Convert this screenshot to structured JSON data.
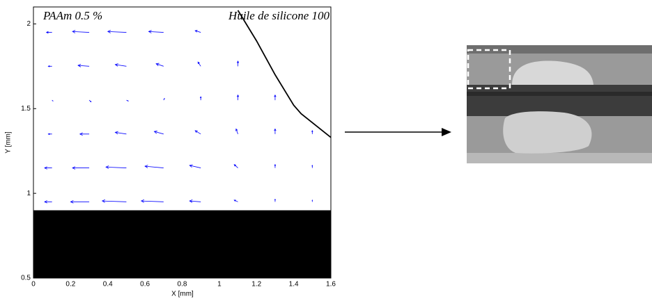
{
  "chart_data": {
    "type": "quiver",
    "x_label": "X [mm]",
    "y_label": "Y [mm]",
    "annotations": [
      "PAAm 0.5 %",
      "Huile de silicone 100"
    ],
    "xlim": [
      0,
      1.6
    ],
    "ylim": [
      0.5,
      2.1
    ],
    "xticks": [
      0,
      0.2,
      0.4,
      0.6,
      0.8,
      1,
      1.2,
      1.4,
      1.6
    ],
    "yticks": [
      0.5,
      1,
      1.5,
      2
    ],
    "color": "#0000ff",
    "x": [
      0.1,
      0.3,
      0.5,
      0.7,
      0.9,
      1.1,
      1.3,
      1.5,
      0.1,
      0.3,
      0.5,
      0.7,
      0.9,
      1.1,
      1.3,
      1.5,
      0.1,
      0.3,
      0.5,
      0.7,
      0.9,
      1.1,
      1.3,
      1.5,
      0.1,
      0.3,
      0.5,
      0.7,
      0.9,
      1.1,
      1.3,
      0.1,
      0.3,
      0.5,
      0.7,
      0.9,
      1.1,
      0.1,
      0.3,
      0.5,
      0.7,
      0.9
    ],
    "y": [
      0.95,
      0.95,
      0.95,
      0.95,
      0.95,
      0.95,
      0.95,
      0.95,
      1.15,
      1.15,
      1.15,
      1.15,
      1.15,
      1.15,
      1.15,
      1.15,
      1.35,
      1.35,
      1.35,
      1.35,
      1.35,
      1.35,
      1.35,
      1.35,
      1.55,
      1.55,
      1.55,
      1.55,
      1.55,
      1.55,
      1.55,
      1.75,
      1.75,
      1.75,
      1.75,
      1.75,
      1.75,
      1.95,
      1.95,
      1.95,
      1.95,
      1.95
    ],
    "u": [
      -0.04,
      -0.1,
      -0.13,
      -0.12,
      -0.06,
      -0.02,
      0,
      0,
      -0.04,
      -0.09,
      -0.11,
      -0.1,
      -0.06,
      -0.02,
      0,
      0,
      -0.02,
      -0.05,
      -0.06,
      -0.05,
      -0.03,
      -0.01,
      0,
      0,
      0.005,
      0.01,
      0.01,
      0.005,
      0,
      0,
      0,
      -0.02,
      -0.06,
      -0.06,
      -0.04,
      -0.015,
      0,
      -0.03,
      -0.09,
      -0.1,
      -0.08,
      -0.03
    ],
    "v": [
      0,
      0,
      0.005,
      0.005,
      0.005,
      0.01,
      0.015,
      0.01,
      0,
      0,
      0.005,
      0.01,
      0.015,
      0.02,
      0.02,
      0.015,
      0,
      0,
      0.01,
      0.015,
      0.02,
      0.03,
      0.03,
      0.02,
      -0.005,
      -0.01,
      -0.005,
      0.01,
      0.02,
      0.03,
      0.03,
      0,
      0.005,
      0.01,
      0.015,
      0.025,
      0.03,
      0,
      0.005,
      0.005,
      0.005,
      0.01
    ],
    "interface": {
      "x": [
        1.1,
        1.2,
        1.3,
        1.4,
        1.44,
        1.6
      ],
      "y": [
        2.08,
        1.9,
        1.7,
        1.52,
        1.47,
        1.33
      ],
      "color": "#000000"
    },
    "wall": {
      "y": [
        0.5,
        0.9
      ],
      "color": "#000000"
    }
  }
}
